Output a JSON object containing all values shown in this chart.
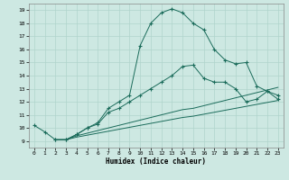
{
  "xlabel": "Humidex (Indice chaleur)",
  "xlim": [
    -0.5,
    23.5
  ],
  "ylim": [
    8.5,
    19.5
  ],
  "xticks": [
    0,
    1,
    2,
    3,
    4,
    5,
    6,
    7,
    8,
    9,
    10,
    11,
    12,
    13,
    14,
    15,
    16,
    17,
    18,
    19,
    20,
    21,
    22,
    23
  ],
  "yticks": [
    9,
    10,
    11,
    12,
    13,
    14,
    15,
    16,
    17,
    18,
    19
  ],
  "background_color": "#cde8e2",
  "line_color": "#1a6b5a",
  "grid_color": "#b0d4cc",
  "lines": [
    {
      "x": [
        0,
        1,
        2,
        3,
        4,
        5,
        6,
        7,
        8,
        9,
        10,
        11,
        12,
        13,
        14,
        15,
        16,
        17,
        18,
        19,
        20,
        21,
        22,
        23
      ],
      "y": [
        10.2,
        9.7,
        9.1,
        9.1,
        9.5,
        10.0,
        10.4,
        11.5,
        12.0,
        12.5,
        16.3,
        18.0,
        18.8,
        19.1,
        18.8,
        18.0,
        17.5,
        16.0,
        15.2,
        14.9,
        15.0,
        13.2,
        12.8,
        12.5
      ],
      "marker": "+"
    },
    {
      "x": [
        2,
        3,
        4,
        5,
        6,
        7,
        8,
        9,
        10,
        11,
        12,
        13,
        14,
        15,
        16,
        17,
        18,
        19,
        20,
        21,
        22,
        23
      ],
      "y": [
        9.1,
        9.1,
        9.5,
        10.0,
        10.3,
        11.2,
        11.5,
        12.0,
        12.5,
        13.0,
        13.5,
        14.0,
        14.7,
        14.8,
        13.8,
        13.5,
        13.5,
        13.0,
        12.0,
        12.2,
        12.8,
        12.2
      ],
      "marker": "+"
    },
    {
      "x": [
        2,
        3,
        4,
        5,
        6,
        7,
        8,
        9,
        10,
        11,
        12,
        13,
        14,
        15,
        16,
        17,
        18,
        19,
        20,
        21,
        22,
        23
      ],
      "y": [
        9.1,
        9.1,
        9.4,
        9.6,
        9.8,
        10.0,
        10.2,
        10.4,
        10.6,
        10.8,
        11.0,
        11.2,
        11.4,
        11.5,
        11.7,
        11.9,
        12.1,
        12.3,
        12.5,
        12.7,
        12.9,
        13.1
      ],
      "marker": null
    },
    {
      "x": [
        2,
        3,
        4,
        5,
        6,
        7,
        8,
        9,
        10,
        11,
        12,
        13,
        14,
        15,
        16,
        17,
        18,
        19,
        20,
        21,
        22,
        23
      ],
      "y": [
        9.1,
        9.1,
        9.3,
        9.45,
        9.6,
        9.75,
        9.9,
        10.05,
        10.2,
        10.35,
        10.5,
        10.65,
        10.8,
        10.9,
        11.05,
        11.2,
        11.35,
        11.5,
        11.65,
        11.8,
        11.95,
        12.1
      ],
      "marker": null
    }
  ]
}
